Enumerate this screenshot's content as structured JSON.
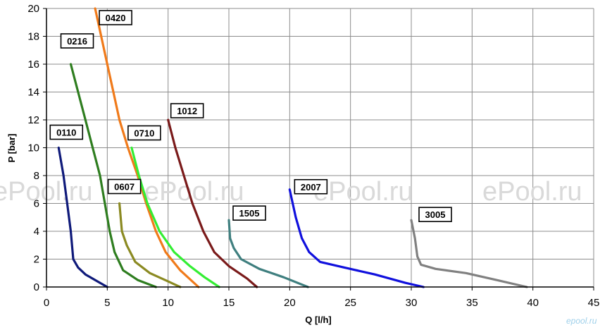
{
  "chart_data": {
    "type": "line",
    "xlabel": "Q [l/h]",
    "ylabel": "P [bar]",
    "xlim": [
      0,
      45
    ],
    "ylim": [
      0,
      20
    ],
    "xticks": [
      0,
      5,
      10,
      15,
      20,
      25,
      30,
      35,
      40,
      45
    ],
    "yticks": [
      0,
      2,
      4,
      6,
      8,
      10,
      12,
      14,
      16,
      18,
      20
    ],
    "grid": true,
    "legend": "inline labels next to each curve",
    "series": [
      {
        "name": "0110",
        "color": "#0f1a7a",
        "points": [
          [
            1.0,
            10
          ],
          [
            1.4,
            8
          ],
          [
            1.7,
            6
          ],
          [
            2.0,
            4
          ],
          [
            2.2,
            2
          ],
          [
            2.6,
            1.4
          ],
          [
            3.2,
            0.9
          ],
          [
            4.2,
            0.4
          ],
          [
            5.0,
            0
          ]
        ]
      },
      {
        "name": "0216",
        "color": "#2e7d1f",
        "points": [
          [
            2.0,
            16
          ],
          [
            2.6,
            14
          ],
          [
            3.2,
            12
          ],
          [
            3.8,
            10
          ],
          [
            4.4,
            8
          ],
          [
            4.8,
            6
          ],
          [
            5.2,
            4
          ],
          [
            5.6,
            2.5
          ],
          [
            6.3,
            1.2
          ],
          [
            7.5,
            0.5
          ],
          [
            9.0,
            0
          ]
        ]
      },
      {
        "name": "0420",
        "color": "#f07a1a",
        "points": [
          [
            4.0,
            20
          ],
          [
            4.5,
            18
          ],
          [
            5.0,
            16
          ],
          [
            5.5,
            14
          ],
          [
            6.0,
            12
          ],
          [
            6.7,
            10
          ],
          [
            7.5,
            8
          ],
          [
            8.2,
            6
          ],
          [
            9.0,
            4
          ],
          [
            9.8,
            2.5
          ],
          [
            11.0,
            1.2
          ],
          [
            12.5,
            0
          ]
        ]
      },
      {
        "name": "0607",
        "color": "#8b8a22",
        "points": [
          [
            6.0,
            6
          ],
          [
            6.2,
            4
          ],
          [
            6.6,
            3
          ],
          [
            7.3,
            1.8
          ],
          [
            8.5,
            1.0
          ],
          [
            10.0,
            0.4
          ],
          [
            11.0,
            0
          ]
        ]
      },
      {
        "name": "0710",
        "color": "#33ee33",
        "points": [
          [
            7.0,
            10
          ],
          [
            7.6,
            8
          ],
          [
            8.3,
            6
          ],
          [
            9.3,
            4
          ],
          [
            10.5,
            2.5
          ],
          [
            11.8,
            1.5
          ],
          [
            13.0,
            0.7
          ],
          [
            14.2,
            0
          ]
        ]
      },
      {
        "name": "1012",
        "color": "#7a1a1a",
        "points": [
          [
            10.0,
            12
          ],
          [
            10.6,
            10
          ],
          [
            11.3,
            8
          ],
          [
            12.0,
            6
          ],
          [
            12.9,
            4
          ],
          [
            13.8,
            2.5
          ],
          [
            15.0,
            1.5
          ],
          [
            16.5,
            0.6
          ],
          [
            17.3,
            0
          ]
        ]
      },
      {
        "name": "1505",
        "color": "#3f7f7f",
        "points": [
          [
            15.0,
            4.8
          ],
          [
            15.1,
            3.5
          ],
          [
            15.4,
            2.8
          ],
          [
            16.0,
            2.0
          ],
          [
            17.5,
            1.3
          ],
          [
            19.5,
            0.7
          ],
          [
            21.5,
            0
          ]
        ]
      },
      {
        "name": "2007",
        "color": "#1010dd",
        "points": [
          [
            20.0,
            7
          ],
          [
            20.5,
            5
          ],
          [
            21.0,
            3.5
          ],
          [
            21.6,
            2.5
          ],
          [
            22.5,
            1.8
          ],
          [
            24.5,
            1.4
          ],
          [
            27.0,
            0.9
          ],
          [
            29.5,
            0.3
          ],
          [
            31.0,
            0
          ]
        ]
      },
      {
        "name": "3005",
        "color": "#808080",
        "points": [
          [
            30.0,
            4.8
          ],
          [
            30.3,
            3.5
          ],
          [
            30.5,
            2.2
          ],
          [
            30.8,
            1.6
          ],
          [
            32.0,
            1.3
          ],
          [
            34.5,
            1.0
          ],
          [
            37.0,
            0.5
          ],
          [
            39.5,
            0
          ]
        ]
      }
    ],
    "labels": [
      {
        "series": "0110",
        "text": "0110"
      },
      {
        "series": "0216",
        "text": "0216"
      },
      {
        "series": "0420",
        "text": "0420"
      },
      {
        "series": "0607",
        "text": "0607"
      },
      {
        "series": "0710",
        "text": "0710"
      },
      {
        "series": "1012",
        "text": "1012"
      },
      {
        "series": "1505",
        "text": "1505"
      },
      {
        "series": "2007",
        "text": "2007"
      },
      {
        "series": "3005",
        "text": "3005"
      }
    ]
  },
  "watermark": {
    "text": "ePool.ru"
  },
  "logo": {
    "text": "epool.ru"
  }
}
